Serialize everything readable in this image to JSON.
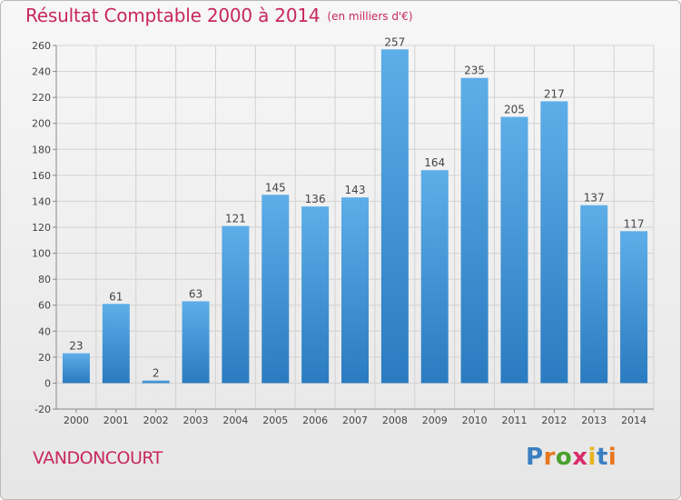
{
  "header": {
    "title": "Résultat Comptable 2000 à 2014",
    "unit": "(en milliers d'€)"
  },
  "footer": {
    "commune": "VANDONCOURT",
    "brand": "Proxiti",
    "brand_letters": [
      "P",
      "r",
      "o",
      "x",
      "i",
      "t",
      "i"
    ],
    "brand_colors": [
      "#3a7fc1",
      "#e8761e",
      "#4aa02c",
      "#d92c6a",
      "#e8b520",
      "#3a7fc1",
      "#e8761e"
    ]
  },
  "colors": {
    "bar_top": "#5daee8",
    "bar_bottom": "#2a7bc0",
    "title": "#c8285c",
    "grid": "#d2d2d2",
    "text": "#444444"
  },
  "chart_data": {
    "type": "bar",
    "categories": [
      "2000",
      "2001",
      "2002",
      "2003",
      "2004",
      "2005",
      "2006",
      "2007",
      "2008",
      "2009",
      "2010",
      "2011",
      "2012",
      "2013",
      "2014"
    ],
    "values": [
      23,
      61,
      2,
      63,
      121,
      145,
      136,
      143,
      257,
      164,
      235,
      205,
      217,
      137,
      117
    ],
    "title": "Résultat Comptable 2000 à 2014",
    "xlabel": "",
    "ylabel": "",
    "ylim": [
      -20,
      260
    ],
    "yticks": [
      -20,
      0,
      20,
      40,
      60,
      80,
      100,
      120,
      140,
      160,
      180,
      200,
      220,
      240,
      260
    ],
    "grid": true,
    "data_labels": true
  }
}
